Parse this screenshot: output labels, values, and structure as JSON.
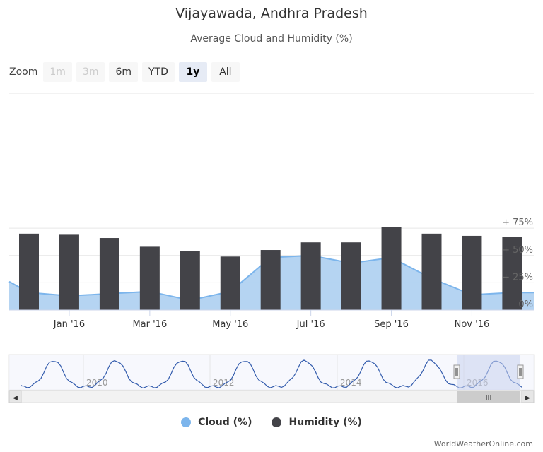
{
  "title": "Vijayawada, Andhra Pradesh",
  "subtitle": "Average Cloud and Humidity (%)",
  "zoom": {
    "label": "Zoom",
    "buttons": [
      {
        "label": "1m",
        "state": "disabled"
      },
      {
        "label": "3m",
        "state": "disabled"
      },
      {
        "label": "6m",
        "state": "normal"
      },
      {
        "label": "YTD",
        "state": "normal"
      },
      {
        "label": "1y",
        "state": "selected"
      },
      {
        "label": "All",
        "state": "normal"
      }
    ]
  },
  "colors": {
    "cloud_fill": "#a8ccf0",
    "cloud_line": "#7cb5ec",
    "humidity": "#434348",
    "navigator_line": "#335cad",
    "navigator_mask": "#c9d2ee"
  },
  "chart_data": {
    "type": "bar",
    "x_tick_labels": [
      "Jan '16",
      "Mar '16",
      "May '16",
      "Jul '16",
      "Sep '16",
      "Nov '16"
    ],
    "y_tick_labels": [
      "0%",
      "+ 25%",
      "+ 50%",
      "+ 75%"
    ],
    "ylim": [
      0,
      75
    ],
    "months": [
      "2015-12",
      "2016-01",
      "2016-02",
      "2016-03",
      "2016-04",
      "2016-05",
      "2016-06",
      "2016-07",
      "2016-08",
      "2016-09",
      "2016-10",
      "2016-11",
      "2016-12"
    ],
    "series": [
      {
        "name": "Cloud (%)",
        "type": "area",
        "values": [
          16,
          13,
          15,
          17,
          9,
          17,
          48,
          50,
          43,
          48,
          29,
          14,
          16
        ],
        "left_edge_value": 26
      },
      {
        "name": "Humidity (%)",
        "type": "column",
        "values": [
          70,
          69,
          66,
          58,
          54,
          49,
          55,
          62,
          62,
          76,
          70,
          68,
          67
        ]
      }
    ],
    "grid": true,
    "legend": "bottom-center"
  },
  "navigator": {
    "labels": [
      "2010",
      "2012",
      "2014",
      "2016"
    ],
    "handle_grip": "III",
    "left_arrow": "◀",
    "right_arrow": "▶"
  },
  "legend": [
    {
      "label": "Cloud (%)",
      "color": "#7cb5ec"
    },
    {
      "label": "Humidity (%)",
      "color": "#434348"
    }
  ],
  "credit": "WorldWeatherOnline.com"
}
